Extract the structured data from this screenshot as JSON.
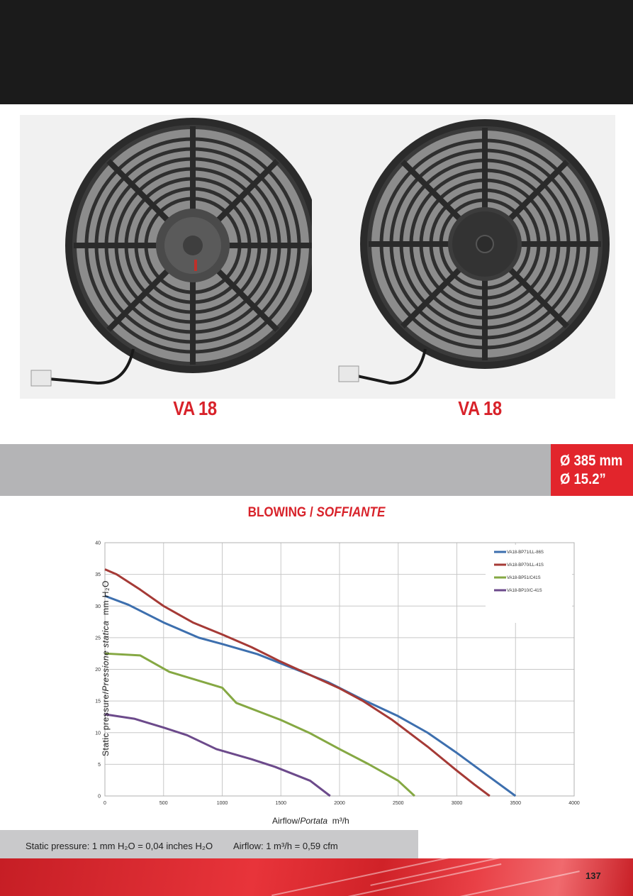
{
  "products": {
    "left_model": "VA 18",
    "right_model": "VA 18"
  },
  "dimensions": {
    "diameter_mm": "Ø 385 mm",
    "diameter_inch": "Ø 15.2”"
  },
  "chart_title": {
    "main": "BLOWING / ",
    "italic": "SOFFIANTE"
  },
  "chart_axes": {
    "xlabel_main": "Airflow/",
    "xlabel_italic": "Portata",
    "xlabel_unit": "m³/h",
    "ylabel_main": "Static pressure/",
    "ylabel_italic": "Pressione statica",
    "ylabel_unit": "mm H₂O"
  },
  "chart_data": {
    "type": "line",
    "xlabel": "Airflow/Portata m³/h",
    "ylabel": "Static pressure/Pressione statica mm H₂O",
    "xlim": [
      0,
      4000
    ],
    "ylim": [
      0,
      40
    ],
    "xticks": [
      0,
      500,
      1000,
      1500,
      2000,
      2500,
      3000,
      3500,
      4000
    ],
    "yticks": [
      0,
      5,
      10,
      15,
      20,
      25,
      30,
      35,
      40
    ],
    "grid": true,
    "legend_position": "top-right",
    "series": [
      {
        "name": "VA18-BP71/LL-86S",
        "color": "#3d6fae",
        "x": [
          0,
          200,
          500,
          800,
          1000,
          1300,
          1600,
          1900,
          2200,
          2500,
          2750,
          3000,
          3250,
          3500
        ],
        "y": [
          31.6,
          30.2,
          27.4,
          25.0,
          24.0,
          22.4,
          20.2,
          18.0,
          15.2,
          12.6,
          10.0,
          6.8,
          3.4,
          0
        ]
      },
      {
        "name": "VA18-BP70/LL-41S",
        "color": "#a53a36",
        "x": [
          0,
          100,
          300,
          500,
          750,
          1000,
          1250,
          1500,
          1750,
          2000,
          2200,
          2450,
          2750,
          3000,
          3150,
          3280
        ],
        "y": [
          35.8,
          35.0,
          32.6,
          30.0,
          27.4,
          25.5,
          23.5,
          21.2,
          19.1,
          17.0,
          15.0,
          12.0,
          7.8,
          4.0,
          1.8,
          0
        ]
      },
      {
        "name": "VA18-BP51/C41S",
        "color": "#85a843",
        "x": [
          0,
          300,
          550,
          1000,
          1120,
          1500,
          1750,
          2000,
          2250,
          2500,
          2640
        ],
        "y": [
          22.5,
          22.2,
          19.6,
          17.1,
          14.7,
          12.0,
          9.9,
          7.4,
          5.0,
          2.4,
          0
        ]
      },
      {
        "name": "VA18-BP10/C-41S",
        "color": "#6c4a8b",
        "x": [
          0,
          250,
          500,
          700,
          950,
          1250,
          1450,
          1750,
          1920
        ],
        "y": [
          12.9,
          12.2,
          10.8,
          9.6,
          7.4,
          5.8,
          4.6,
          2.4,
          0
        ]
      }
    ]
  },
  "footer": {
    "static_pressure_note": "Static pressure: 1 mm H₂O = 0,04 inches H₂O",
    "airflow_note": "Airflow: 1 m³/h = 0,59 cfm",
    "page_number": "137"
  }
}
